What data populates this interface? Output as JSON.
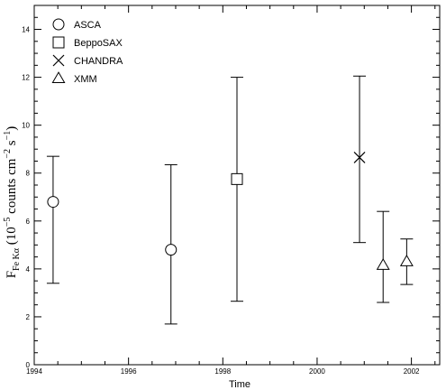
{
  "chart_data": {
    "type": "scatter",
    "xlabel": "Time",
    "ylabel": {
      "main": "F",
      "subscript": "Fe Kα",
      "rest": "(10",
      "exp1": "−5",
      "mid": " counts cm",
      "exp2": "−2",
      "mid2": " s",
      "exp3": "−1",
      "end": ")"
    },
    "xlim": [
      1994,
      2002.6
    ],
    "ylim": [
      0,
      15
    ],
    "xticks": [
      1994,
      1996,
      1998,
      2000,
      2002
    ],
    "yticks": [
      0,
      2,
      4,
      6,
      8,
      10,
      12,
      14
    ],
    "grid": false,
    "legend_position": "top-left",
    "series": [
      {
        "name": "ASCA",
        "marker": "circle",
        "points": [
          {
            "x": 1994.4,
            "y": 6.8,
            "ylow": 3.4,
            "yhigh": 8.7
          },
          {
            "x": 1996.9,
            "y": 4.8,
            "ylow": 1.7,
            "yhigh": 8.35
          }
        ]
      },
      {
        "name": "BeppoSAX",
        "marker": "square",
        "points": [
          {
            "x": 1998.3,
            "y": 7.75,
            "ylow": 2.65,
            "yhigh": 12.0
          }
        ]
      },
      {
        "name": "CHANDRA",
        "marker": "cross",
        "points": [
          {
            "x": 2000.9,
            "y": 8.65,
            "ylow": 5.1,
            "yhigh": 12.05
          }
        ]
      },
      {
        "name": "XMM",
        "marker": "triangle",
        "points": [
          {
            "x": 2001.4,
            "y": 4.15,
            "ylow": 2.6,
            "yhigh": 6.4
          },
          {
            "x": 2001.9,
            "y": 4.3,
            "ylow": 3.35,
            "yhigh": 5.25
          }
        ]
      }
    ]
  }
}
